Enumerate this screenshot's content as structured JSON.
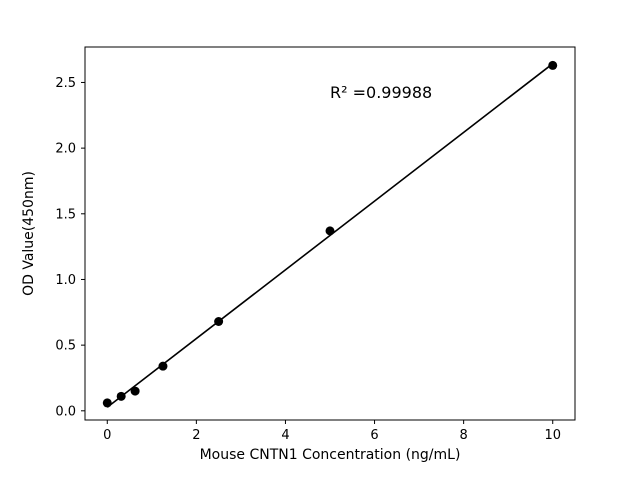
{
  "figure": {
    "background": "#ffffff",
    "foreground": "#000000"
  },
  "chart_data": {
    "type": "scatter",
    "title": "",
    "xlabel": "Mouse CNTN1 Concentration (ng/mL)",
    "ylabel": "OD Value(450nm)",
    "x": [
      0,
      0.3125,
      0.625,
      1.25,
      2.5,
      5,
      10
    ],
    "y": [
      0.06,
      0.11,
      0.15,
      0.34,
      0.68,
      1.37,
      2.63
    ],
    "fit": "linear",
    "annotation": {
      "text": "R² =0.99988",
      "x": 5.0,
      "y": 2.42
    },
    "xlim": [
      -0.5,
      10.5
    ],
    "ylim": [
      -0.07,
      2.77
    ],
    "x_ticks": [
      0,
      2,
      4,
      6,
      8,
      10
    ],
    "y_ticks": [
      0.0,
      0.5,
      1.0,
      1.5,
      2.0,
      2.5
    ],
    "marker_color": "#000000",
    "line_color": "#000000",
    "grid": false,
    "legend_position": "none"
  }
}
